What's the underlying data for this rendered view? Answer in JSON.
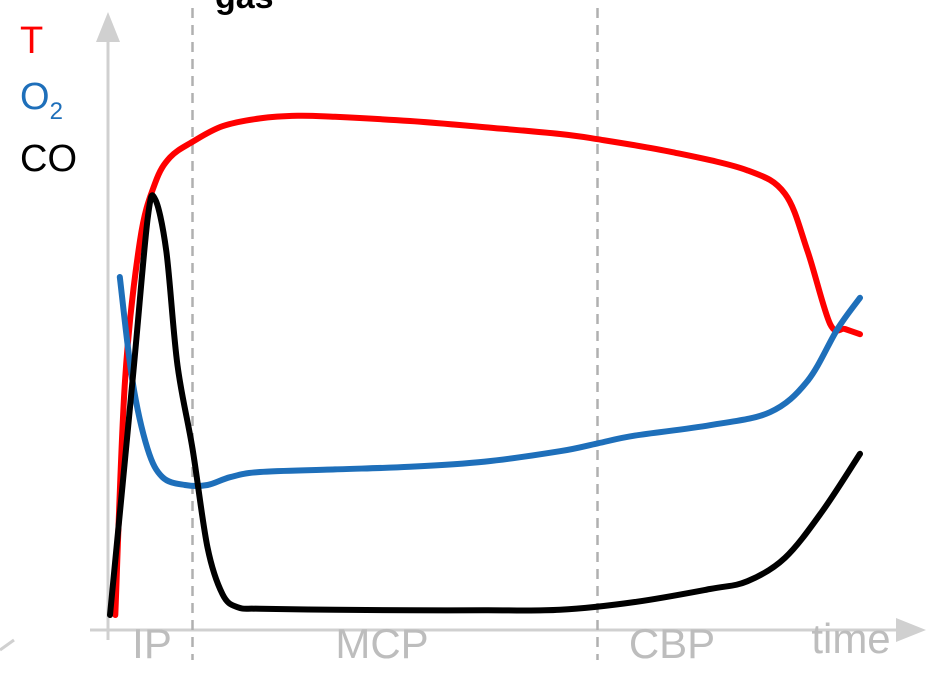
{
  "chart_data": {
    "type": "line",
    "title": "gas",
    "xlabel": "time",
    "ylabel": "",
    "legend": [
      {
        "label": "T",
        "color": "#ff0000"
      },
      {
        "label": "O",
        "subscript": "2",
        "color": "#1e6fba"
      },
      {
        "label": "CO",
        "color": "#000000"
      }
    ],
    "phases": [
      "IP",
      "MCP",
      "CBP"
    ],
    "phase_boundaries": [
      0.11,
      0.65
    ],
    "xlim": [
      0,
      1
    ],
    "ylim": [
      0,
      1
    ],
    "grid": false,
    "series": [
      {
        "color": "#ff0000",
        "x": [
          0.007,
          0.02,
          0.04,
          0.06,
          0.08,
          0.11,
          0.15,
          0.2,
          0.25,
          0.3,
          0.4,
          0.5,
          0.6,
          0.65,
          0.75,
          0.85,
          0.9,
          0.93,
          0.96,
          0.98,
          1.0
        ],
        "y": [
          0.0,
          0.45,
          0.72,
          0.83,
          0.88,
          0.91,
          0.94,
          0.955,
          0.96,
          0.958,
          0.95,
          0.938,
          0.925,
          0.915,
          0.89,
          0.855,
          0.81,
          0.7,
          0.56,
          0.55,
          0.54
        ]
      },
      {
        "color": "#1e6fba",
        "x": [
          0.013,
          0.03,
          0.05,
          0.07,
          0.1,
          0.13,
          0.16,
          0.2,
          0.3,
          0.4,
          0.5,
          0.6,
          0.65,
          0.7,
          0.8,
          0.88,
          0.93,
          0.97,
          1.0
        ],
        "y": [
          0.65,
          0.45,
          0.32,
          0.265,
          0.25,
          0.25,
          0.265,
          0.275,
          0.28,
          0.285,
          0.295,
          0.315,
          0.33,
          0.345,
          0.365,
          0.39,
          0.45,
          0.55,
          0.61
        ]
      },
      {
        "color": "#000000",
        "x": [
          0.0,
          0.03,
          0.05,
          0.06,
          0.075,
          0.09,
          0.11,
          0.13,
          0.15,
          0.17,
          0.2,
          0.3,
          0.4,
          0.5,
          0.6,
          0.7,
          0.8,
          0.85,
          0.9,
          0.95,
          1.0
        ],
        "y": [
          0.0,
          0.45,
          0.76,
          0.8,
          0.7,
          0.48,
          0.32,
          0.13,
          0.04,
          0.015,
          0.012,
          0.01,
          0.009,
          0.009,
          0.01,
          0.025,
          0.05,
          0.065,
          0.11,
          0.2,
          0.31
        ]
      }
    ]
  }
}
